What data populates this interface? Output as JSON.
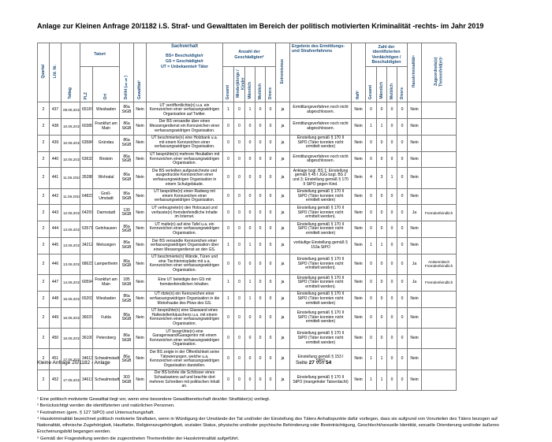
{
  "page": {
    "title": "Anlage zur Kleinen Anfrage 20/1182 i.S. Straf- und Gewalttaten im Bereich der politisch motivierten Kriminalität -rechts- im Jahr 2019",
    "footer_left": "Kleine Anfrage 20/1182 - Anlage",
    "footer_page": {
      "prefix": "Seite",
      "current": "27",
      "middle": "von",
      "total": "54"
    }
  },
  "colors": {
    "header_text": "#1f4e79",
    "border": "#7a7a7a",
    "body_text": "#000000"
  },
  "table": {
    "headers": {
      "quartal": "Quartal",
      "lfd_nr": "Lfd. Nr.",
      "tattag": "Tattag",
      "tatort_group": "Tatort",
      "plz": "PLZ",
      "ort": "Ort",
      "delikt": "Delikt (§§)",
      "gewalttat": "Gewalttat¹",
      "sachverhalt_title": "Sachverhalt",
      "sachverhalt_legend": [
        "BS= Beschuldigte/r",
        "GS = Geschädigte/r",
        "UT = Unbekannte/r Täter"
      ],
      "geschaedigte_group": "Anzahl der Geschädigten²",
      "g_gesamt": "Gesamt",
      "g_minderjaehrige": "Minderjährige / Kinder",
      "g_maennlich": "Männlich",
      "g_weiblich": "Weiblich",
      "g_divers": "Divers",
      "extremismus": "Extremismus",
      "ergebnis": "Ergebnis des Ermittlungs- und Strafverfahrens",
      "haft": "Haft³",
      "identifizierte_group": "Zahl der identifizierten Verdächtigen / Beschuldigten",
      "i_gesamt": "Gesamt",
      "i_maennlich": "Männlich",
      "i_weiblich": "Weiblich",
      "i_divers": "Divers",
      "hasskriminalitaet": "Hasskriminalität⁴",
      "themenfeld": "Zugeordnete(s) Themenfeld(er)⁵"
    },
    "rows": [
      [
        "2",
        "437",
        "09.06.2019",
        "65187",
        "Wiesbaden",
        "86a StGB",
        "Nein",
        "UT veröffentlichte(n) u.a. ein Kennzeichen einer verfassungswidrigen Organisation auf Twitter.",
        "1",
        "0",
        "1",
        "0",
        "0",
        "ja",
        "Ermittlungsverfahren noch nicht abgeschlossen.",
        "Nein",
        "0",
        "0",
        "0",
        "0",
        "Nein",
        ""
      ],
      [
        "2",
        "438",
        "10.06.2019",
        "60389",
        "Frankfurt am Main",
        "86a StGB",
        "Nein",
        "Der BS versandte über einen Messengerdienst ein Kennzeichen einer verfassungswidrigen Organisation.",
        "0",
        "0",
        "0",
        "0",
        "0",
        "ja",
        "Ermittlungsverfahren noch nicht abgeschlossen.",
        "Nein",
        "1",
        "1",
        "0",
        "0",
        "Nein",
        ""
      ],
      [
        "2",
        "439",
        "10.06.2019",
        "63584",
        "Gründau",
        "86a StGB",
        "Nein",
        "UT beschmierte(n) eine Holzbank u.a. mit einem Kennzeichen einer verfassungswidrigen Organisation.",
        "0",
        "0",
        "0",
        "0",
        "0",
        "ja",
        "Einstellung gemäß § 170 II StPO (Täter konnten nicht ermittelt werden)",
        "Nein",
        "0",
        "0",
        "0",
        "0",
        "Nein",
        ""
      ],
      [
        "2",
        "440",
        "10.06.2019",
        "63633",
        "Birstein",
        "86a StGB",
        "Nein",
        "UT besprühte(n) mehrere Heuballen mit Kennzeichen einer verfassungswidrigen Organisation.",
        "0",
        "0",
        "0",
        "0",
        "0",
        "ja",
        "Ermittlungsverfahren noch nicht abgeschlossen.",
        "Nein",
        "0",
        "0",
        "0",
        "0",
        "Nein",
        ""
      ],
      [
        "2",
        "441",
        "11.06.2019",
        "35288",
        "Wohratal",
        "86a StGB",
        "Nein",
        "Die BS verteilten aufgezeichnete und ausgedruckte Kennzeichen einer verfassungswidrigen Organisation in einem Schulgebäude.",
        "0",
        "0",
        "0",
        "0",
        "0",
        "ja",
        "Anklage bzgl. BS 1; Einstellung gemäß § 45 I JGG bzgl. BS 2 und 3; Einstellung gemäß § 170 II StPO gegen Kind.",
        "Nein",
        "4",
        "3",
        "1",
        "0",
        "Nein",
        ""
      ],
      [
        "2",
        "442",
        "11.06.2019",
        "64823",
        "Groß-Umstadt",
        "86a StGB",
        "Nein",
        "UT besprühte(n) einen Radweg mit einem Kennzeichen einer verfassungswidrigen Organisation.",
        "0",
        "0",
        "0",
        "0",
        "0",
        "ja",
        "Einstellung gemäß § 170 II StPO (Täter konnten nicht ermittelt werden)",
        "Nein",
        "0",
        "0",
        "0",
        "0",
        "Nein",
        ""
      ],
      [
        "2",
        "443",
        "12.06.2019",
        "64297",
        "Darmstadt",
        "130 StGB",
        "Nein",
        "UT verleugnete(n) den Holocaust und verfasste(n) fremdenfeindliche Inhalte im Internet.",
        "0",
        "0",
        "0",
        "0",
        "0",
        "ja",
        "Einstellung gemäß § 170 II StPO (Täter konnten nicht ermittelt werden).",
        "Nein",
        "0",
        "0",
        "0",
        "0",
        "Ja",
        "Fremdenfeindlich"
      ],
      [
        "2",
        "444",
        "13.06.2019",
        "63571",
        "Gelnhausen",
        "86a StGB",
        "Nein",
        "UT malte(n) auf eine Tafel u.a. ein Kennzeichen einer verfassungswidrigen Organisation.",
        "0",
        "0",
        "0",
        "0",
        "0",
        "ja",
        "Einstellung gemäß § 170 II StPO (Täter konnten nicht ermittelt werden)",
        "Nein",
        "0",
        "0",
        "0",
        "0",
        "Nein",
        ""
      ],
      [
        "2",
        "445",
        "13.06.2019",
        "34212",
        "Melsungen",
        "86a StGB",
        "Nein",
        "Der BS versandte Kennzeichen einer verfassungswidrigen Organisation über einen Messengerdienst an den GS.",
        "1",
        "0",
        "1",
        "0",
        "0",
        "ja",
        "vorläufige Einstellung gemäß § 153a StPO",
        "Nein",
        "1",
        "1",
        "0",
        "0",
        "Nein",
        ""
      ],
      [
        "2",
        "446",
        "13.06.2019",
        "68623",
        "Lampertheim",
        "86a StGB",
        "Nein",
        "UT beschmierte(n) Wände, Türen und eine Tischtennisplatte mit u.a. Kennzeichen einer verfassungswidrigen Organisation.",
        "0",
        "0",
        "0",
        "0",
        "0",
        "ja",
        "Einstellung gemäß § 170 II StPO (Täter konnten nicht ermittelt werden).",
        "Nein",
        "0",
        "0",
        "0",
        "0",
        "Ja",
        "Antisemitisch Fremdenfeindlich"
      ],
      [
        "2",
        "447",
        "14.06.2019",
        "60594",
        "Frankfurt am Main",
        "185 StGB",
        "Nein",
        "Eine UT beleidigte den GS mit fremdenfeindlichen Inhalten.",
        "1",
        "0",
        "1",
        "0",
        "0",
        "ja",
        "Einstellung gemäß § 170 II StPO (Täter konnten nicht ermittelt werden).",
        "Nein",
        "0",
        "0",
        "0",
        "0",
        "Ja",
        "Fremdenfeindlich"
      ],
      [
        "2",
        "448",
        "16.06.2019",
        "65203",
        "Wiesbaden",
        "86a StGB",
        "Nein",
        "UT ritzte(n) ein Kennzeichen einer verfassungswidrigen Organisation in die Motorhaube des Pkws des GS.",
        "1",
        "0",
        "1",
        "0",
        "0",
        "ja",
        "Einstellung gemäß § 170 II StPO (Täter konnten nicht ermittelt werden)",
        "Nein",
        "0",
        "0",
        "0",
        "0",
        "Nein",
        ""
      ],
      [
        "2",
        "449",
        "16.06.2019",
        "36037",
        "Fulda",
        "86a StGB",
        "Nein",
        "UT besprühte(n) eine Glaswand eines Haltestellenhäuschens u.a. mit einem Kennzeichen einer verfassungswidrigen Organisation.",
        "0",
        "0",
        "0",
        "0",
        "0",
        "ja",
        "Einstellung gemäß § 170 II StPO (Täter konnten nicht ermittelt werden)",
        "Nein",
        "0",
        "0",
        "0",
        "0",
        "Nein",
        ""
      ],
      [
        "2",
        "450",
        "16.06.2019",
        "36100",
        "Petersberg",
        "86a StGB",
        "Nein",
        "UT besprühte(n) eine Garagenwand/Garagentor mit einem Kennzeichen einer verfassungswidrigen Organisation.",
        "0",
        "0",
        "0",
        "0",
        "0",
        "ja",
        "Einstellung gemäß § 170 II StPO (Täter konnten nicht ermittelt werden)",
        "Nein",
        "0",
        "0",
        "0",
        "0",
        "Nein",
        ""
      ],
      [
        "2",
        "451",
        "17.06.2019",
        "34613",
        "Schwalmstadt",
        "86a StGB",
        "Nein",
        "Der BS zeigte in der Öffentlichkeit seine Tätowierungen, welche u.a. Kennzeichen einer verfassungswidrigen Organisation darstellen.",
        "0",
        "0",
        "0",
        "0",
        "0",
        "ja",
        "Einstellung gemäß § 153 I StPO",
        "Nein",
        "1",
        "1",
        "0",
        "0",
        "Nein",
        ""
      ],
      [
        "2",
        "452",
        "17.06.2019",
        "34613",
        "Schwalmstadt",
        "303 StGB",
        "Nein",
        "Der BS bohrte die Schlösser eines Schaukastens auf und brachte dort mehrere Schreiben mit politischen Inhalt an.",
        "0",
        "0",
        "0",
        "0",
        "0",
        "ja",
        "Einstellung gemäß § 170 II StPO (mangelnder Tatverdacht)",
        "Nein",
        "1",
        "1",
        "0",
        "0",
        "Nein",
        ""
      ]
    ]
  },
  "footnotes": [
    "¹ Eine politisch motivierte Gewalttat liegt vor, wenn eine besondere Gewaltbereitschaft des/der Straftäter(s) vorliegt.",
    "² Berücksichtigt werden die identifizierten und natürlichen Personen.",
    "³ Festnahmen (gem. § 127 StPO) und Untersuchungshaft.",
    "⁴ Hasskriminalität bezeichnet politisch motivierte Straftaten, wenn in Würdigung der Umstände der Tat und/oder der Einstellung des Täters Anhaltspunkte dafür vorliegen, dass sie aufgrund von Vorurteilen des Täters bezogen auf Nationalität, ethnische Zugehörigkeit, Hautfarbe, Religionszugehörigkeit, sozialen Status, physische und/oder psychische Behinderung oder Beeinträchtigung, Geschlecht/sexuelle Identität, sexuelle Orientierung und/oder äußeres Erscheinungsbild begangen werden.",
    "⁵ Gemäß der Fragestellung werden die zugeordneten Themenfelder der Hasskriminalität aufgeführt."
  ]
}
